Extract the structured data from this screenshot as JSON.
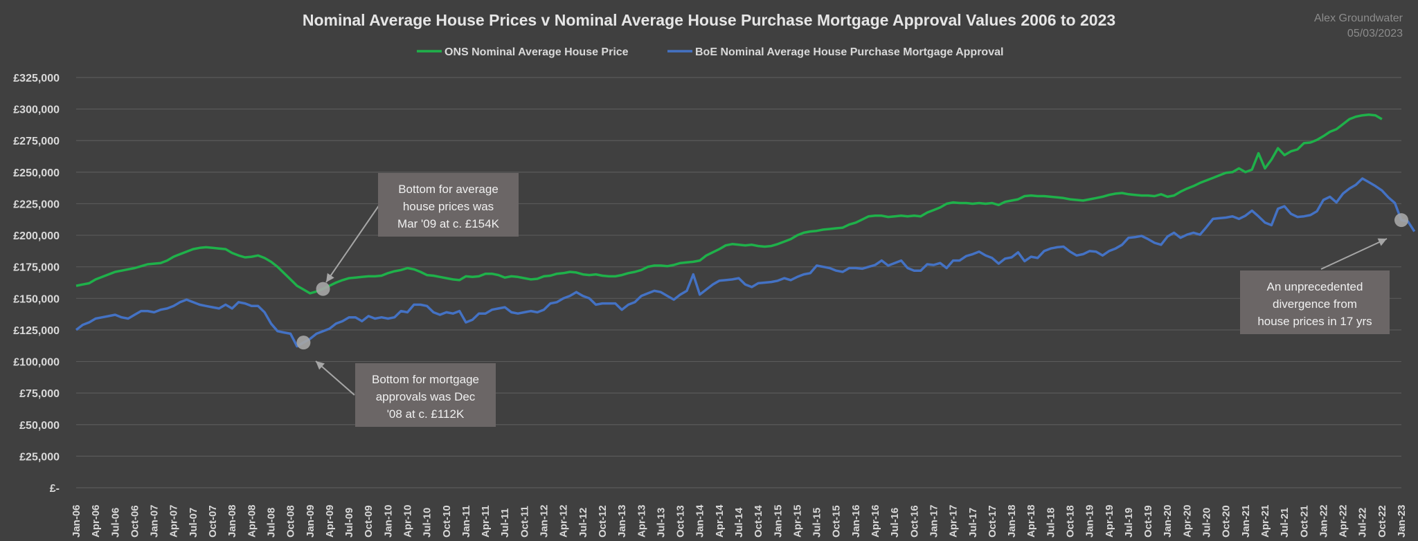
{
  "chart_data": {
    "type": "line",
    "title": "Nominal Average House Prices v Nominal Average House Purchase Mortgage Approval Values 2006 to 2023",
    "author": "Alex Groundwater",
    "date": "05/03/2023",
    "legend_position": "top-center",
    "grid": true,
    "ylim": [
      0,
      325000
    ],
    "y_ticks": [
      0,
      25000,
      50000,
      75000,
      100000,
      125000,
      150000,
      175000,
      200000,
      225000,
      250000,
      275000,
      300000,
      325000
    ],
    "y_tick_labels": [
      "£-",
      "£25,000",
      "£50,000",
      "£75,000",
      "£100,000",
      "£125,000",
      "£150,000",
      "£175,000",
      "£200,000",
      "£225,000",
      "£250,000",
      "£275,000",
      "£300,000",
      "£325,000"
    ],
    "x_start": "Jan-06",
    "x_end": "Jan-23",
    "x_tick_labels": [
      "Jan-06",
      "Apr-06",
      "Jul-06",
      "Oct-06",
      "Jan-07",
      "Apr-07",
      "Jul-07",
      "Oct-07",
      "Jan-08",
      "Apr-08",
      "Jul-08",
      "Oct-08",
      "Jan-09",
      "Apr-09",
      "Jul-09",
      "Oct-09",
      "Jan-10",
      "Apr-10",
      "Jul-10",
      "Oct-10",
      "Jan-11",
      "Apr-11",
      "Jul-11",
      "Oct-11",
      "Jan-12",
      "Apr-12",
      "Jul-12",
      "Oct-12",
      "Jan-13",
      "Apr-13",
      "Jul-13",
      "Oct-13",
      "Jan-14",
      "Apr-14",
      "Jul-14",
      "Oct-14",
      "Jan-15",
      "Apr-15",
      "Jul-15",
      "Oct-15",
      "Jan-16",
      "Apr-16",
      "Jul-16",
      "Oct-16",
      "Jan-17",
      "Apr-17",
      "Jul-17",
      "Oct-17",
      "Jan-18",
      "Apr-18",
      "Jul-18",
      "Oct-18",
      "Jan-19",
      "Apr-19",
      "Jul-19",
      "Oct-19",
      "Jan-20",
      "Apr-20",
      "Jul-20",
      "Oct-20",
      "Jan-21",
      "Apr-21",
      "Jul-21",
      "Oct-21",
      "Jan-22",
      "Apr-22",
      "Jul-22",
      "Oct-22",
      "Jan-23"
    ],
    "series": [
      {
        "name": "ONS Nominal Average House Price",
        "color": "#1fb14a",
        "values": [
          160000,
          161000,
          162000,
          165000,
          167000,
          169000,
          171000,
          172000,
          173000,
          174000,
          175500,
          177000,
          177500,
          178000,
          180000,
          183000,
          185000,
          187000,
          189000,
          190000,
          190500,
          190000,
          189500,
          189000,
          186000,
          184000,
          182500,
          183000,
          184000,
          182000,
          179000,
          175000,
          170000,
          165000,
          160000,
          157000,
          154000,
          155500,
          157500,
          160000,
          162500,
          164500,
          166000,
          166500,
          167000,
          167500,
          167500,
          168000,
          170000,
          171500,
          172500,
          174000,
          173000,
          171000,
          168500,
          168000,
          167000,
          166000,
          165000,
          164500,
          167500,
          167000,
          167500,
          169500,
          169500,
          168500,
          166500,
          167500,
          167000,
          166000,
          165000,
          165500,
          167500,
          168000,
          169500,
          170000,
          171000,
          170500,
          169000,
          168500,
          169000,
          168000,
          167500,
          167500,
          168500,
          170000,
          171000,
          172500,
          175000,
          176000,
          176000,
          175500,
          176500,
          178000,
          178500,
          179000,
          180000,
          184000,
          186500,
          189000,
          192000,
          193000,
          192500,
          192000,
          192500,
          191500,
          191000,
          191500,
          193000,
          195000,
          197000,
          200000,
          202000,
          203000,
          203500,
          204500,
          205000,
          205500,
          206000,
          208500,
          210000,
          212500,
          215000,
          215500,
          215500,
          214500,
          215000,
          215500,
          215000,
          215500,
          215000,
          218000,
          220000,
          222000,
          225000,
          226000,
          225500,
          225500,
          225000,
          225500,
          225000,
          225500,
          224000,
          226500,
          227500,
          228500,
          231000,
          231500,
          231000,
          231000,
          230500,
          230000,
          229500,
          228500,
          228000,
          227500,
          228500,
          229500,
          230500,
          232000,
          233000,
          233500,
          232500,
          232000,
          231500,
          231500,
          231000,
          232500,
          230500,
          231500,
          234500,
          237000,
          239000,
          241500,
          243500,
          245500,
          247500,
          249500,
          250000,
          253000,
          250000,
          252000,
          265000,
          253000,
          260000,
          269000,
          263500,
          266500,
          268000,
          273000,
          273500,
          275500,
          278500,
          282000,
          284000,
          288000,
          292000,
          294000,
          295000,
          295500,
          295000,
          292000
        ]
      },
      {
        "name": "BoE Nominal Average House Purchase Mortgage Approval",
        "color": "#4472c4",
        "values": [
          125000,
          129000,
          131000,
          134000,
          135000,
          136000,
          137000,
          135000,
          134000,
          137000,
          140000,
          140000,
          139000,
          141000,
          142000,
          144000,
          147000,
          149000,
          147000,
          145000,
          144000,
          143000,
          142000,
          145000,
          142000,
          147000,
          146000,
          144000,
          144000,
          139000,
          130000,
          124000,
          123000,
          122000,
          112000,
          115000,
          118000,
          122000,
          124000,
          126000,
          130000,
          132000,
          135000,
          135000,
          132000,
          136000,
          134000,
          135000,
          134000,
          135000,
          140000,
          139000,
          145000,
          145000,
          144000,
          139000,
          137000,
          139000,
          138000,
          140000,
          131000,
          133000,
          138000,
          138000,
          141000,
          142000,
          143000,
          139000,
          138000,
          139000,
          140000,
          139000,
          141000,
          146000,
          147000,
          150000,
          152000,
          155000,
          152000,
          150000,
          145000,
          146000,
          146000,
          146000,
          141000,
          145000,
          147000,
          152000,
          154000,
          156000,
          155000,
          152000,
          149000,
          153000,
          156000,
          169000,
          153000,
          157000,
          161000,
          164000,
          164500,
          165000,
          166000,
          161000,
          159000,
          162000,
          162500,
          163000,
          164000,
          166000,
          164500,
          167000,
          169000,
          170000,
          176000,
          175000,
          174000,
          172000,
          171000,
          174000,
          174000,
          173500,
          175000,
          176500,
          180000,
          176000,
          178000,
          180000,
          174000,
          172000,
          172000,
          177000,
          176500,
          178000,
          174000,
          180000,
          180000,
          183500,
          185000,
          187000,
          184000,
          182000,
          177500,
          181500,
          182500,
          186500,
          179500,
          183000,
          182000,
          187500,
          189500,
          190500,
          191000,
          187000,
          184000,
          185000,
          187500,
          187000,
          184000,
          187500,
          189500,
          192500,
          198000,
          198500,
          199500,
          197000,
          194000,
          192500,
          199000,
          202000,
          198000,
          200500,
          202000,
          200500,
          206500,
          213000,
          213500,
          214000,
          215000,
          213000,
          215500,
          219500,
          215000,
          210000,
          208000,
          221000,
          223000,
          217000,
          214500,
          215000,
          216000,
          219000,
          228000,
          230500,
          226000,
          233000,
          237000,
          240000,
          245000,
          242000,
          239000,
          235500,
          230000,
          225500,
          212000,
          211000,
          203000
        ]
      }
    ],
    "annotations": [
      {
        "lines": [
          "Bottom for average",
          "house prices was",
          "Mar '09 at c. £154K"
        ]
      },
      {
        "lines": [
          "Bottom for mortgage",
          "approvals was Dec",
          "'08 at c. £112K"
        ]
      },
      {
        "lines": [
          "An unprecedented",
          "divergence from",
          "house prices in 17 yrs"
        ]
      }
    ]
  }
}
